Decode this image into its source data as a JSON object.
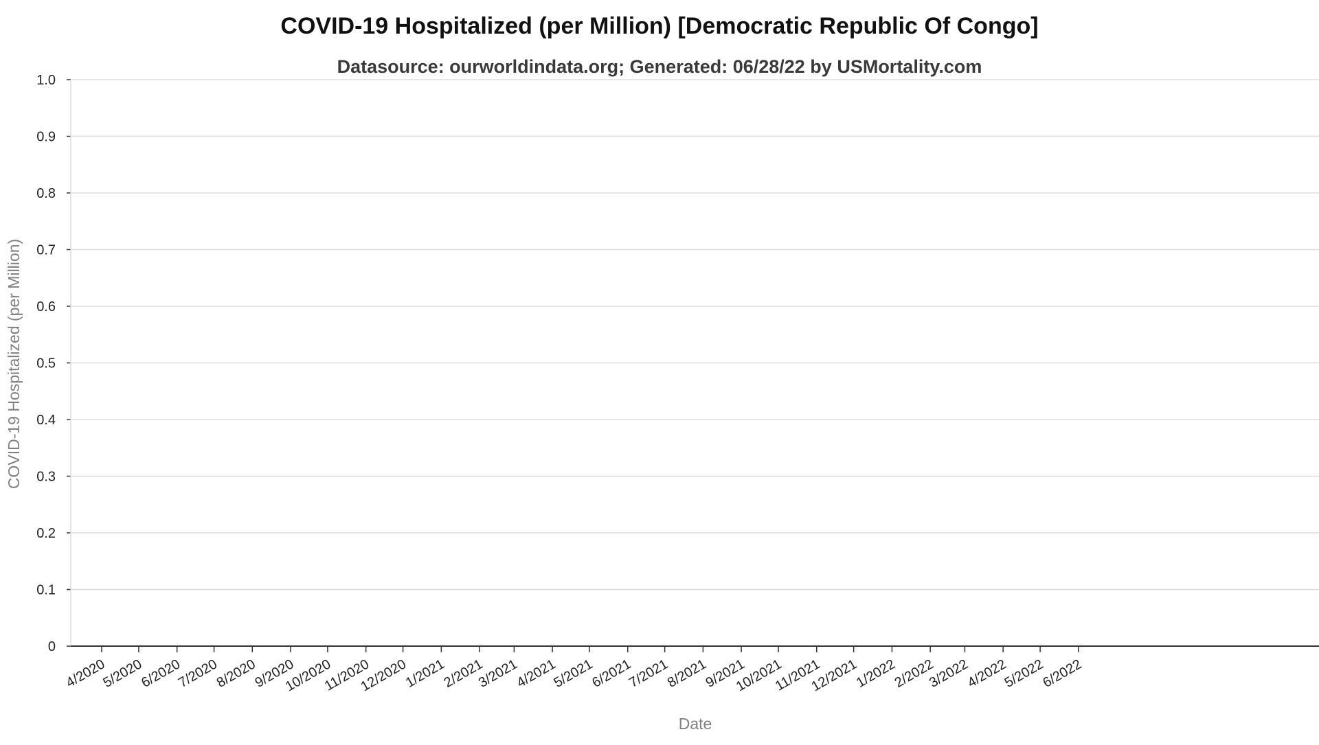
{
  "chart_data": {
    "type": "line",
    "title": "COVID-19 Hospitalized (per Million) [Democratic Republic Of Congo]",
    "subtitle": "Datasource: ourworldindata.org; Generated: 06/28/22 by USMortality.com",
    "xlabel": "Date",
    "ylabel": "COVID-19 Hospitalized (per Million)",
    "ylim": [
      0,
      1.0
    ],
    "yticks": [
      "0",
      "0.1",
      "0.2",
      "0.3",
      "0.4",
      "0.5",
      "0.6",
      "0.7",
      "0.8",
      "0.9",
      "1.0"
    ],
    "xticks": [
      "4/2020",
      "5/2020",
      "6/2020",
      "7/2020",
      "8/2020",
      "9/2020",
      "10/2020",
      "11/2020",
      "12/2020",
      "1/2021",
      "2/2021",
      "3/2021",
      "4/2021",
      "5/2021",
      "6/2021",
      "7/2021",
      "8/2021",
      "9/2021",
      "10/2021",
      "11/2021",
      "12/2021",
      "1/2022",
      "2/2022",
      "3/2022",
      "4/2022",
      "5/2022",
      "6/2022"
    ],
    "x_month_lengths": [
      30,
      31,
      30,
      31,
      31,
      30,
      31,
      30,
      31,
      31,
      28,
      31,
      30,
      31,
      30,
      31,
      31,
      30,
      31,
      30,
      31,
      31,
      28,
      31,
      30,
      31,
      30
    ],
    "series": [],
    "grid": true,
    "legend": "none"
  }
}
